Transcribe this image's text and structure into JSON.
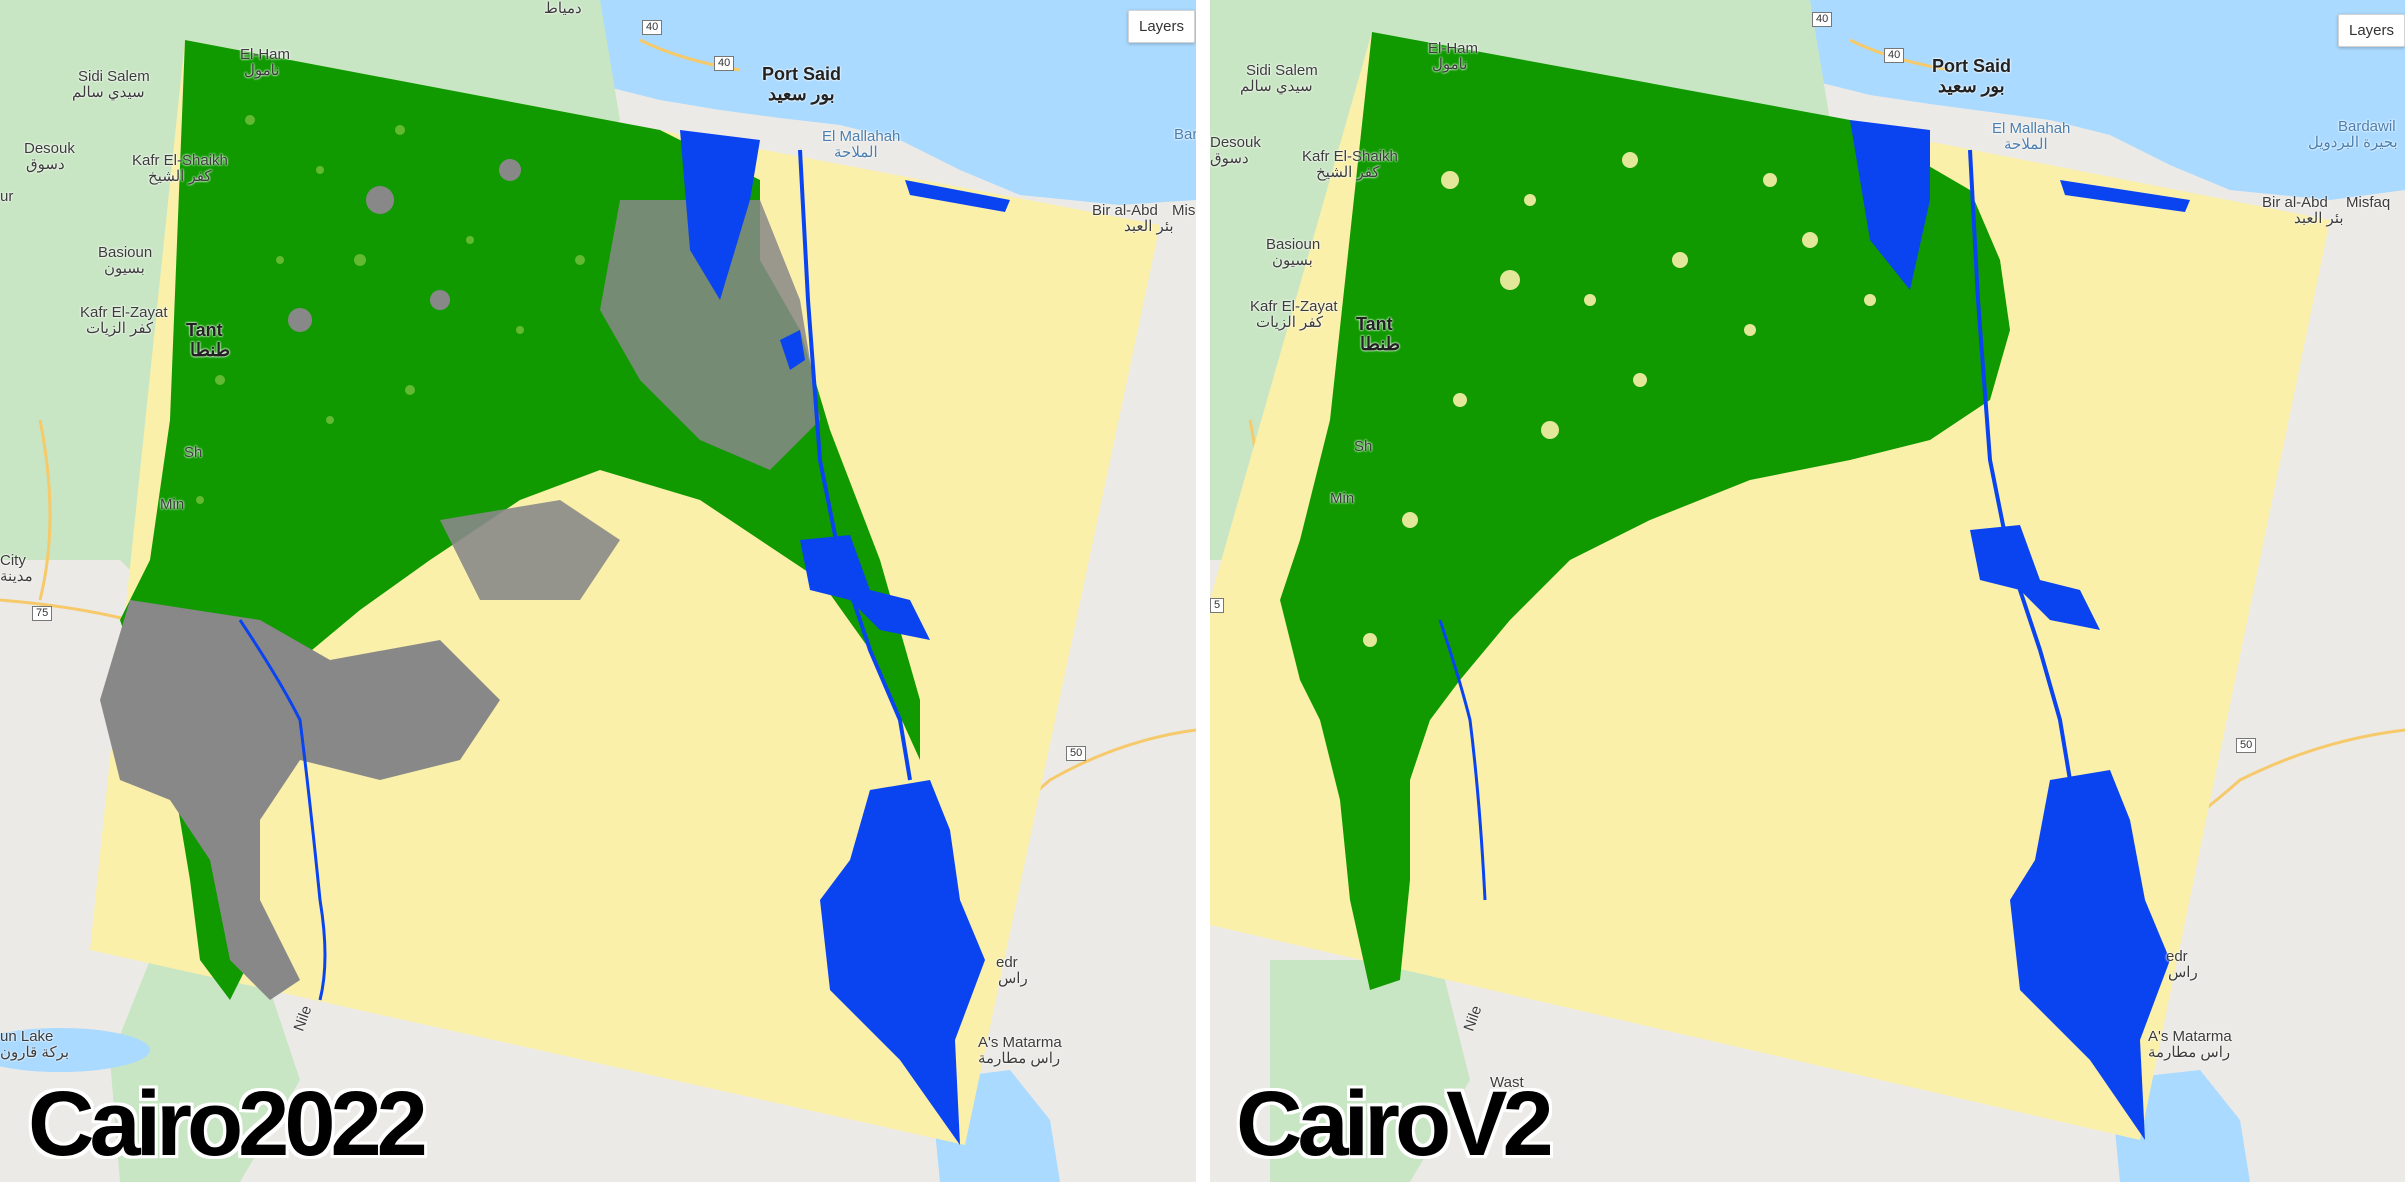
{
  "colors": {
    "land": "#eceae6",
    "sea": "#aadaff",
    "vegetation_map": "#c9e6c4",
    "classified_green": "#109a00",
    "classified_water": "#0a44f0",
    "classified_urban": "#888888",
    "classified_desert": "#faf0aa",
    "road": "#f6c96a"
  },
  "panels": [
    {
      "title": "Cairo2022",
      "layers_label": "Layers",
      "labels": {
        "el_ham": "El-Ham",
        "el_ham_ar": "نامول",
        "sidi_salem": "Sidi Salem",
        "sidi_salem_ar": "سيدي سالم",
        "desouk": "Desouk",
        "desouk_ar": "دسوق",
        "kafr_el_shaikh": "Kafr El-Shaikh",
        "kafr_el_shaikh_ar": "كفر الشيخ",
        "basioun": "Basioun",
        "basioun_ar": "بسيون",
        "kafr_el_zayat": "Kafr El-Zayat",
        "kafr_el_zayat_ar": "كفر الزيات",
        "tanta": "Tant",
        "tanta_ar": "طنطا",
        "port_said": "Port Said",
        "port_said_ar": "بور سعيد",
        "damietta_ar": "دمياط",
        "el_mallahah": "El Mallahah",
        "el_mallahah_ar": "الملاحة",
        "bir_al_abd": "Bir al-Abd",
        "bir_al_abd_ar": "بئر العبد",
        "misfaq": "Mis",
        "bar": "Bar",
        "ur": "ur",
        "city": "City",
        "city_ar": "مدينة",
        "un_lake": "un Lake",
        "un_lake_ar": "بركة قارون",
        "ras_matarma": "A's Matarma",
        "ras_matarma_ar": "راس مطارمة",
        "sedr": "edr",
        "sedr_ar": "راس",
        "nile": "Nile",
        "mi": "Min",
        "sh": "Sh",
        "road_40a": "40",
        "road_40b": "40",
        "road_75": "75",
        "road_50": "50"
      }
    },
    {
      "title": "CairoV2",
      "layers_label": "Layers",
      "labels": {
        "el_ham": "El-Ham",
        "el_ham_ar": "نامول",
        "sidi_salem": "Sidi Salem",
        "sidi_salem_ar": "سيدي سالم",
        "desouk": "Desouk",
        "desouk_ar": "دسوق",
        "kafr_el_shaikh": "Kafr El-Shaikh",
        "kafr_el_shaikh_ar": "كفر الشيخ",
        "basioun": "Basioun",
        "basioun_ar": "بسيون",
        "kafr_el_zayat": "Kafr El-Zayat",
        "kafr_el_zayat_ar": "كفر الزيات",
        "tanta": "Tant",
        "tanta_ar": "طنطا",
        "port_said": "Port Said",
        "port_said_ar": "بور سعيد",
        "el_mallahah": "El Mallahah",
        "el_mallahah_ar": "الملاحة",
        "bardawil": "Bardawil",
        "bardawil_ar": "بحيرة البردويل",
        "bir_al_abd": "Bir al-Abd",
        "bir_al_abd_ar": "بئر العبد",
        "misfaq": "Misfaq",
        "ras_matarma": "A's Matarma",
        "ras_matarma_ar": "راس مطارمة",
        "sedr": "edr",
        "sedr_ar": "راس",
        "nile": "Nile",
        "mi": "Min",
        "sh": "Sh",
        "waste": "Wast",
        "road_40a": "40",
        "road_40b": "40",
        "road_5": "5",
        "road_50": "50"
      }
    }
  ]
}
